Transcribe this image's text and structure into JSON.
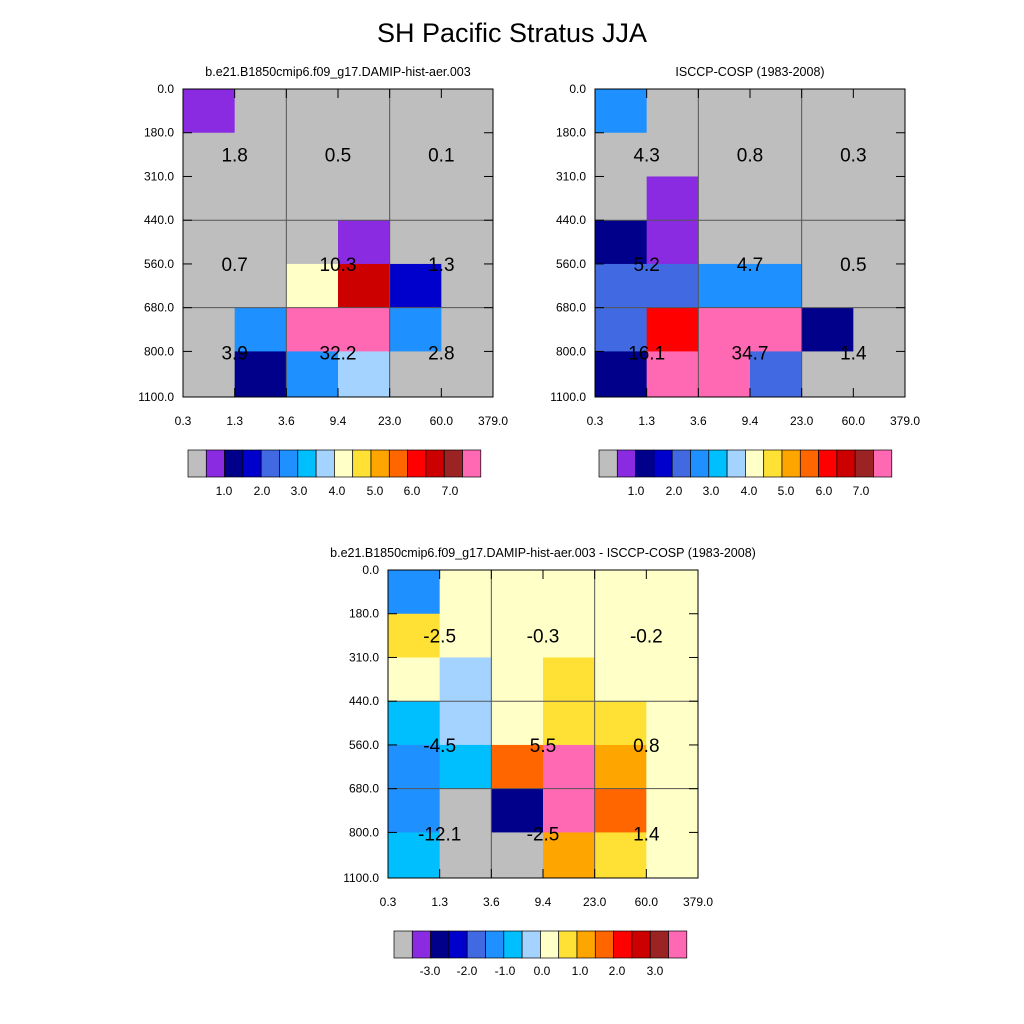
{
  "page": {
    "title": "SH Pacific Stratus JJA"
  },
  "chart_data": [
    {
      "type": "heatmap",
      "title": "b.e21.B1850cmip6.f09_g17.DAMIP-hist-aer.003",
      "x_ticks": [
        "0.3",
        "1.3",
        "3.6",
        "9.4",
        "23.0",
        "60.0",
        "379.0"
      ],
      "y_ticks": [
        "0.0",
        "180.0",
        "310.0",
        "440.0",
        "560.0",
        "680.0",
        "800.0",
        "1100.0"
      ],
      "cells": [
        [
          1,
          0,
          0,
          0,
          0,
          0
        ],
        [
          0,
          0,
          0,
          0,
          0,
          0
        ],
        [
          0,
          0,
          0,
          0,
          0,
          0
        ],
        [
          0,
          0,
          0,
          1,
          0,
          0
        ],
        [
          0,
          0,
          8,
          13,
          3,
          0
        ],
        [
          0,
          5,
          16,
          16,
          5,
          0
        ],
        [
          0,
          2,
          5,
          7,
          0,
          0
        ]
      ],
      "values": [
        "1.8",
        "0.5",
        "0.1",
        "0.7",
        "10.3",
        "1.3",
        "3.9",
        "32.2",
        "2.8"
      ],
      "colorbar": {
        "labels": [
          "1.0",
          "2.0",
          "3.0",
          "4.0",
          "5.0",
          "6.0",
          "7.0"
        ]
      }
    },
    {
      "type": "heatmap",
      "title": "ISCCP-COSP (1983-2008)",
      "x_ticks": [
        "0.3",
        "1.3",
        "3.6",
        "9.4",
        "23.0",
        "60.0",
        "379.0"
      ],
      "y_ticks": [
        "0.0",
        "180.0",
        "310.0",
        "440.0",
        "560.0",
        "680.0",
        "800.0",
        "1100.0"
      ],
      "cells": [
        [
          5,
          0,
          0,
          0,
          0,
          0
        ],
        [
          0,
          0,
          0,
          0,
          0,
          0
        ],
        [
          0,
          1,
          0,
          0,
          0,
          0
        ],
        [
          2,
          1,
          0,
          0,
          0,
          0
        ],
        [
          4,
          4,
          5,
          5,
          0,
          0
        ],
        [
          4,
          12,
          16,
          16,
          2,
          0
        ],
        [
          2,
          15,
          16,
          4,
          0,
          0
        ]
      ],
      "values": [
        "4.3",
        "0.8",
        "0.3",
        "5.2",
        "4.7",
        "0.5",
        "16.1",
        "34.7",
        "1.4"
      ],
      "colorbar": {
        "labels": [
          "1.0",
          "2.0",
          "3.0",
          "4.0",
          "5.0",
          "6.0",
          "7.0"
        ]
      }
    },
    {
      "type": "heatmap",
      "title": "b.e21.B1850cmip6.f09_g17.DAMIP-hist-aer.003 - ISCCP-COSP (1983-2008)",
      "x_ticks": [
        "0.3",
        "1.3",
        "3.6",
        "9.4",
        "23.0",
        "60.0",
        "379.0"
      ],
      "y_ticks": [
        "0.0",
        "180.0",
        "310.0",
        "440.0",
        "560.0",
        "680.0",
        "800.0",
        "1100.0"
      ],
      "cells": [
        [
          5,
          8,
          8,
          8,
          8,
          8
        ],
        [
          9,
          8,
          8,
          8,
          8,
          8
        ],
        [
          8,
          7,
          8,
          9,
          8,
          8
        ],
        [
          6,
          7,
          8,
          9,
          9,
          8
        ],
        [
          5,
          6,
          11,
          16,
          10,
          8
        ],
        [
          5,
          0,
          2,
          16,
          11,
          8
        ],
        [
          6,
          0,
          0,
          10,
          9,
          8
        ]
      ],
      "values": [
        "-2.5",
        "-0.3",
        "-0.2",
        "-4.5",
        "5.5",
        "0.8",
        "-12.1",
        "-2.5",
        "1.4"
      ],
      "colorbar": {
        "labels": [
          "-3.0",
          "-2.0",
          "-1.0",
          "0.0",
          "1.0",
          "2.0",
          "3.0"
        ]
      }
    }
  ],
  "palette": [
    "#bebebe",
    "#8a2be2",
    "#00008b",
    "#0000cd",
    "#4169e1",
    "#1e90ff",
    "#00bfff",
    "#a4d3ff",
    "#ffffc8",
    "#ffe135",
    "#ffa500",
    "#ff6600",
    "#ff0000",
    "#cd0000",
    "#9b2323",
    "#ff69b4",
    "#ff69b4"
  ]
}
